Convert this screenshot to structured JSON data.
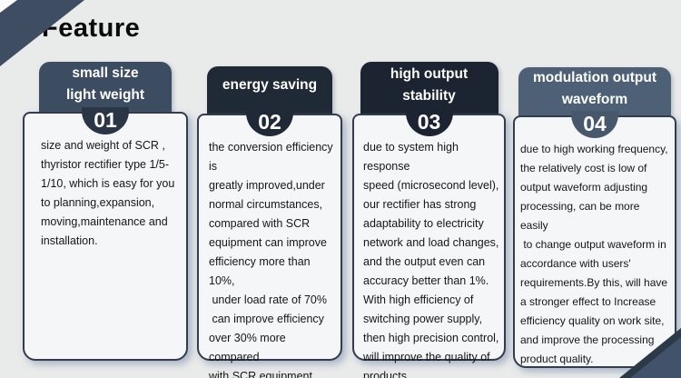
{
  "title": "Feature",
  "palette": {
    "background": "#e9eaea",
    "card_background": "#f5f6f7",
    "card_border": "#333c4d",
    "header_text": "#ffffff",
    "body_text": "#161616",
    "ribbon_slate": "#3e4d62",
    "corner_accent": "#42526a"
  },
  "cards": [
    {
      "number": "01",
      "header": "small size\nlight weight",
      "header_color": "#3d4d61",
      "badge_color": "#2a3545",
      "body": "size and weight of SCR ,\nthyristor rectifier type 1/5-\n1/10, which is easy for you\nto planning,expansion,\nmoving,maintenance and\ninstallation."
    },
    {
      "number": "02",
      "header": "energy saving",
      "header_color": "#202a36",
      "badge_color": "#202a36",
      "body": "the conversion efficiency is\ngreatly improved,under\nnormal circumstances,\ncompared with SCR\nequipment can improve\nefficiency more than 10%,\n under load rate of 70%\n can improve efficiency\nover 30% more compared\nwith SCR equipment."
    },
    {
      "number": "03",
      "header": "high output\nstability",
      "header_color": "#1b2430",
      "badge_color": "#1b2430",
      "body": "due to system high response\nspeed (microsecond level),\nour rectifier has strong\nadaptability to electricity\nnetwork and load changes,\nand the output even can\naccuracy better than 1%.\nWith high efficiency of\nswitching power supply,\nthen high precision control,\nwill improve the quality of\nproducts."
    },
    {
      "number": "04",
      "header": "modulation output\nwaveform",
      "header_color": "#4d6076",
      "badge_color": "#47586d",
      "body": "due to high working frequency,\nthe relatively cost is low of\noutput waveform adjusting\nprocessing, can be more easily\n to change output waveform in\naccordance with users'\nrequirements.By this, will have\na stronger effect to Increase\nefficiency quality on work site,\nand improve the processing\nproduct quality."
    }
  ]
}
